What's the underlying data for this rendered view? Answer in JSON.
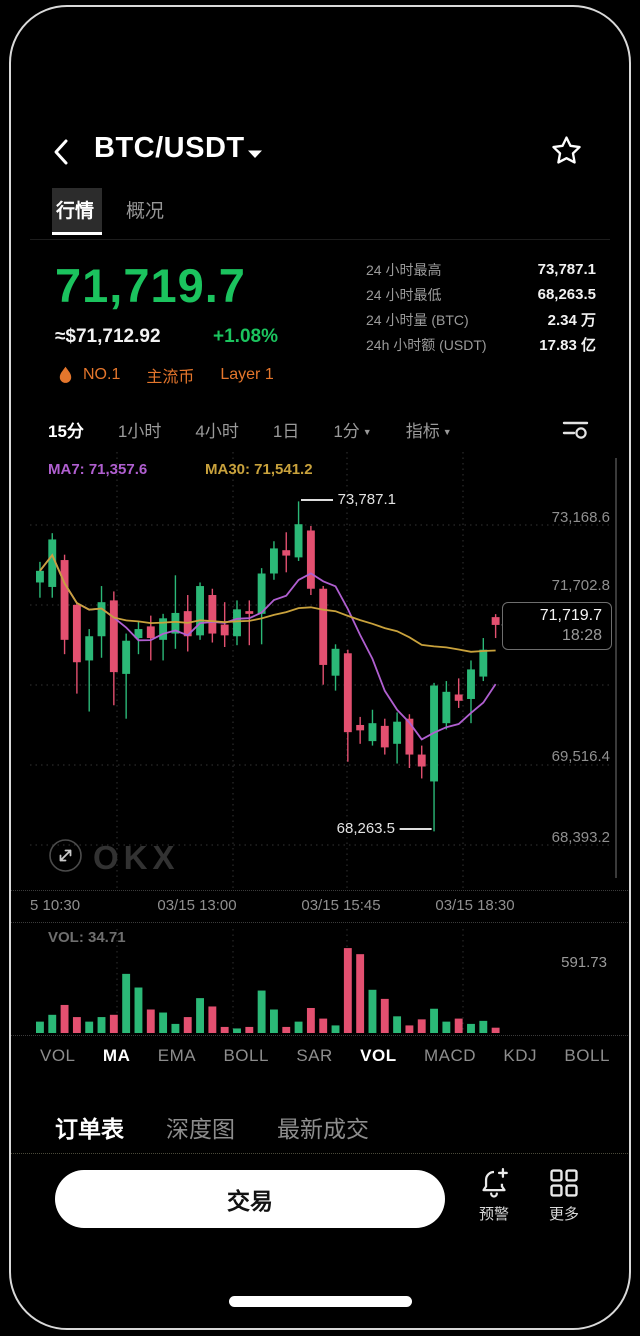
{
  "header": {
    "title": "BTC/USDT"
  },
  "market_tabs": [
    {
      "label": "行情",
      "active": true
    },
    {
      "label": "概况",
      "active": false
    }
  ],
  "price": {
    "last": "71,719.7",
    "fiat": "≈$71,712.92",
    "change": "+1.08%"
  },
  "stats": [
    {
      "label": "24 小时最高",
      "value": "73,787.1"
    },
    {
      "label": "24 小时最低",
      "value": "68,263.5"
    },
    {
      "label": "24 小时量 (BTC)",
      "value": "2.34 万"
    },
    {
      "label": "24h 小时额 (USDT)",
      "value": "17.83 亿"
    }
  ],
  "badges": {
    "items": [
      "NO.1",
      "主流币",
      "Layer 1"
    ],
    "color": "#e4762c"
  },
  "timeframes": [
    {
      "label": "15分",
      "active": true,
      "caret": false
    },
    {
      "label": "1小时",
      "active": false,
      "caret": false
    },
    {
      "label": "4小时",
      "active": false,
      "caret": false
    },
    {
      "label": "1日",
      "active": false,
      "caret": false
    },
    {
      "label": "1分",
      "active": false,
      "caret": true
    },
    {
      "label": "指标",
      "active": false,
      "caret": true
    }
  ],
  "chart_data": {
    "type": "candlestick",
    "interval": "15分",
    "ma_overlays": [
      {
        "label": "MA7: 71,357.6",
        "color": "#b05fd0"
      },
      {
        "label": "MA30: 71,541.2",
        "color": "#c9a23c"
      }
    ],
    "y_axis_labels": [
      "73,168.6",
      "71,702.8",
      "69,516.4",
      "68,393.2"
    ],
    "x_axis_labels": [
      "5 10:30",
      "03/15 13:00",
      "03/15 15:45",
      "03/15 18:30"
    ],
    "high_annotation": "73,787.1",
    "low_annotation": "68,263.5",
    "last_price_tag": {
      "price": "71,719.7",
      "time": "18:28"
    },
    "volume_pane": {
      "legend": "VOL: 34.71",
      "axis_max": "591.73",
      "vol_max_value": 620
    },
    "watermark": "OKX",
    "up_color": "#2bb877",
    "down_color": "#e35070",
    "ylim": [
      67300,
      74580
    ],
    "candles": [
      [
        72430,
        72775,
        72175,
        72625
      ],
      [
        72355,
        73255,
        72175,
        73150
      ],
      [
        72805,
        72895,
        71230,
        71470
      ],
      [
        72055,
        72100,
        70570,
        71095
      ],
      [
        71125,
        71650,
        70270,
        71530
      ],
      [
        71530,
        72370,
        71170,
        72100
      ],
      [
        72130,
        72280,
        70375,
        70930
      ],
      [
        70900,
        71575,
        70150,
        71455
      ],
      [
        71500,
        71770,
        71230,
        71650
      ],
      [
        71695,
        71875,
        71125,
        71500
      ],
      [
        71470,
        71905,
        71125,
        71830
      ],
      [
        71575,
        72550,
        71320,
        71920
      ],
      [
        71950,
        72220,
        71275,
        71530
      ],
      [
        71545,
        72430,
        71470,
        72370
      ],
      [
        72220,
        72325,
        71425,
        71575
      ],
      [
        71725,
        72100,
        71350,
        71545
      ],
      [
        71530,
        72130,
        71380,
        71980
      ],
      [
        71950,
        72130,
        71380,
        71905
      ],
      [
        71905,
        72670,
        71395,
        72580
      ],
      [
        72580,
        73120,
        72475,
        73000
      ],
      [
        72970,
        73270,
        72600,
        72880
      ],
      [
        72850,
        73787.1,
        72790,
        73405
      ],
      [
        73300,
        73375,
        72220,
        72325
      ],
      [
        72325,
        72370,
        70720,
        71050
      ],
      [
        70870,
        71395,
        70620,
        71320
      ],
      [
        71245,
        71305,
        69430,
        69925
      ],
      [
        70045,
        70180,
        69730,
        69955
      ],
      [
        69775,
        70300,
        69700,
        70075
      ],
      [
        70030,
        70150,
        69550,
        69670
      ],
      [
        69730,
        70255,
        69400,
        70100
      ],
      [
        70150,
        70225,
        69325,
        69550
      ],
      [
        69550,
        69700,
        69150,
        69350
      ],
      [
        69100,
        70750,
        68263.5,
        70705
      ],
      [
        70075,
        70780,
        69970,
        70600
      ],
      [
        70555,
        70825,
        70330,
        70450
      ],
      [
        70480,
        71125,
        70075,
        70975
      ],
      [
        70855,
        71500,
        70780,
        71305
      ],
      [
        71850,
        71900,
        71500,
        71719.7
      ]
    ],
    "volumes": [
      75,
      120,
      185,
      105,
      75,
      105,
      120,
      390,
      300,
      155,
      135,
      60,
      105,
      230,
      175,
      40,
      30,
      40,
      280,
      155,
      40,
      75,
      165,
      95,
      50,
      560,
      520,
      285,
      225,
      110,
      50,
      90,
      160,
      75,
      95,
      60,
      80,
      35
    ]
  },
  "indicator_tabs": [
    {
      "label": "VOL",
      "active": false
    },
    {
      "label": "MA",
      "active": true
    },
    {
      "label": "EMA",
      "active": false
    },
    {
      "label": "BOLL",
      "active": false
    },
    {
      "label": "SAR",
      "active": false
    },
    {
      "label": "VOL",
      "active": true
    },
    {
      "label": "MACD",
      "active": false
    },
    {
      "label": "KDJ",
      "active": false
    },
    {
      "label": "BOLL",
      "active": false
    }
  ],
  "bottom_tabs": [
    {
      "label": "订单表",
      "active": true
    },
    {
      "label": "深度图",
      "active": false
    },
    {
      "label": "最新成交",
      "active": false
    }
  ],
  "actions": {
    "trade": "交易",
    "alert": "预警",
    "more": "更多"
  }
}
